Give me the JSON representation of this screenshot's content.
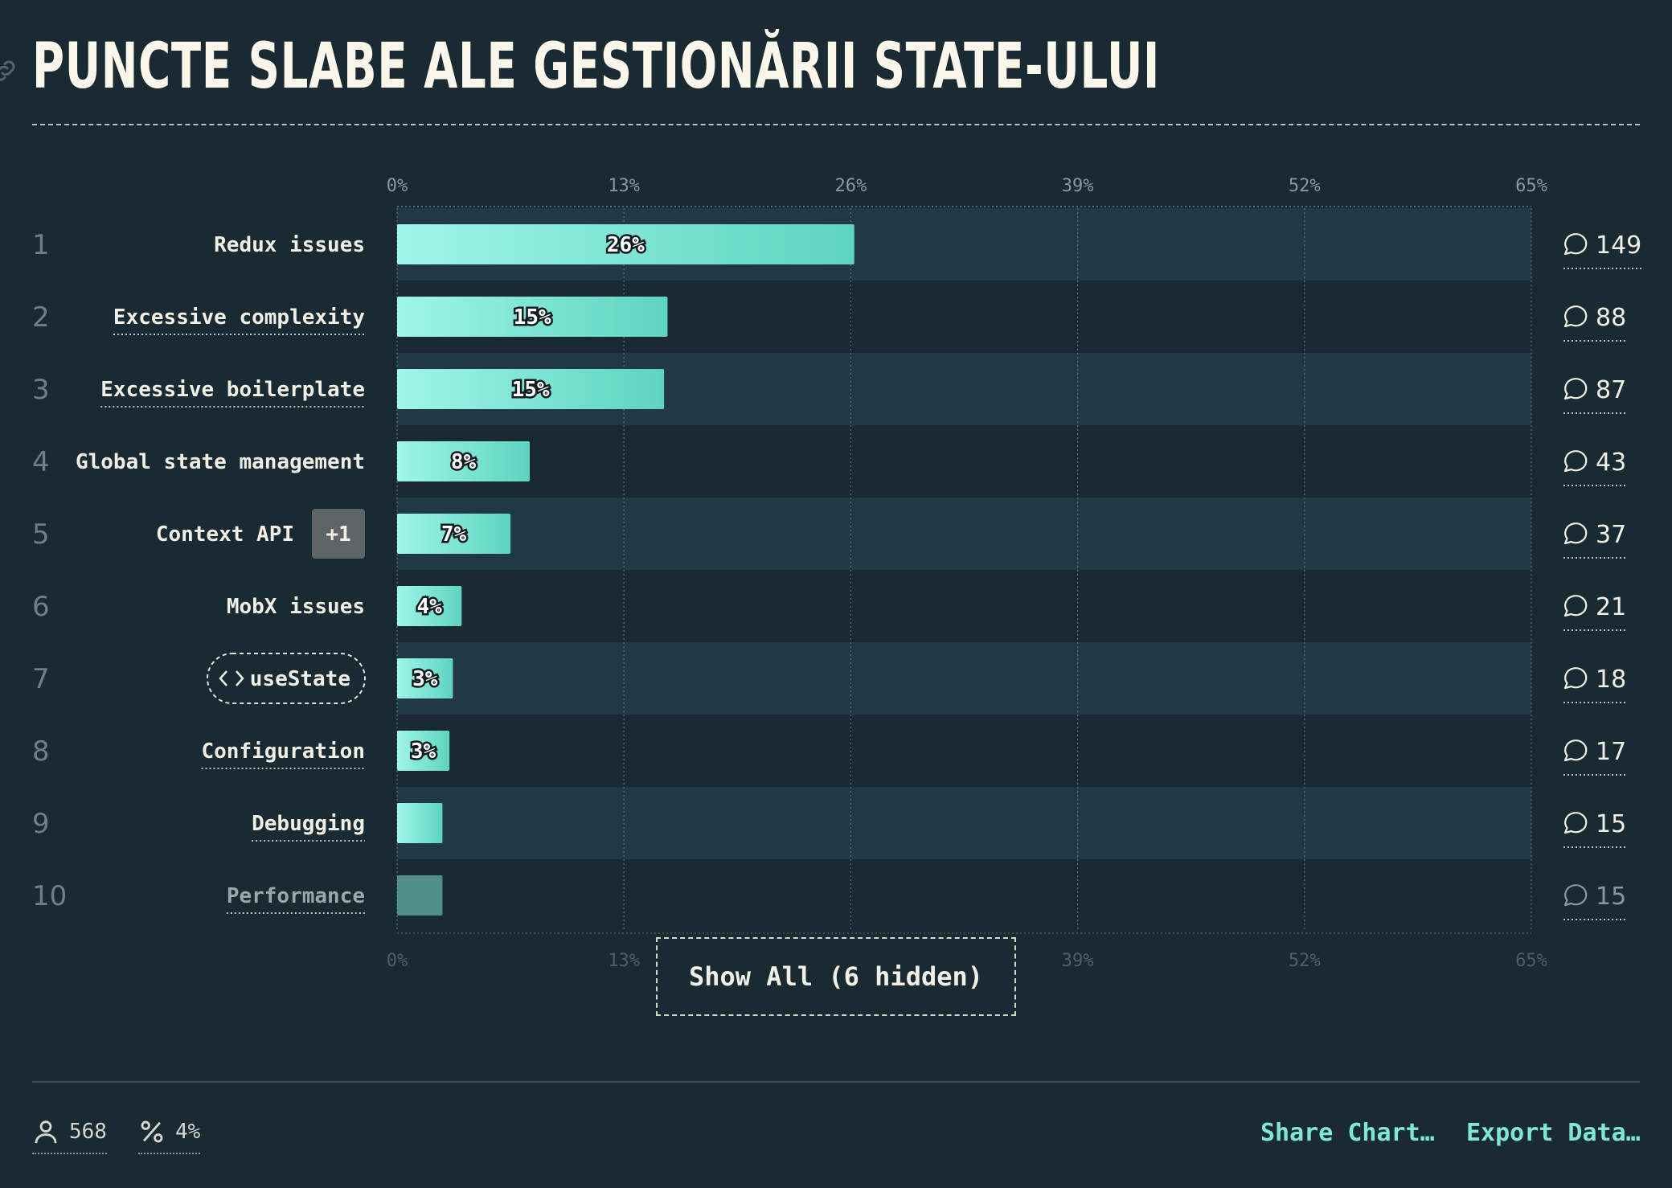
{
  "title": "PUNCTE SLABE ALE GESTIONĂRII STATE-ULUI",
  "chart_data": {
    "type": "bar",
    "orientation": "horizontal",
    "axis_ticks": [
      "0%",
      "13%",
      "26%",
      "39%",
      "52%",
      "65%"
    ],
    "xlim": [
      0,
      65
    ],
    "grid": true,
    "colors": {
      "bar_start": "#9ff6e9",
      "bar_end": "#5ed4c0",
      "bar_dim": "#4f8f89",
      "band": "#213947"
    },
    "categories": [
      {
        "rank": "1",
        "label": "Redux issues",
        "value": 26.2,
        "value_label": "26%",
        "count": "149",
        "underlined": false
      },
      {
        "rank": "2",
        "label": "Excessive complexity",
        "value": 15.5,
        "value_label": "15%",
        "count": "88",
        "underlined": true
      },
      {
        "rank": "3",
        "label": "Excessive boilerplate",
        "value": 15.3,
        "value_label": "15%",
        "count": "87",
        "underlined": true
      },
      {
        "rank": "4",
        "label": "Global state management",
        "value": 7.6,
        "value_label": "8%",
        "count": "43",
        "underlined": false
      },
      {
        "rank": "5",
        "label": "Context API",
        "badge": "+1",
        "value": 6.5,
        "value_label": "7%",
        "count": "37",
        "underlined": false
      },
      {
        "rank": "6",
        "label": "MobX issues",
        "value": 3.7,
        "value_label": "4%",
        "count": "21",
        "underlined": false
      },
      {
        "rank": "7",
        "label": "useState",
        "code_chip": true,
        "value": 3.2,
        "value_label": "3%",
        "count": "18",
        "underlined": false
      },
      {
        "rank": "8",
        "label": "Configuration",
        "value": 3.0,
        "value_label": "3%",
        "count": "17",
        "underlined": true
      },
      {
        "rank": "9",
        "label": "Debugging",
        "value": 2.6,
        "value_label": "",
        "count": "15",
        "underlined": true
      },
      {
        "rank": "10",
        "label": "Performance",
        "value": 2.6,
        "value_label": "",
        "count": "15",
        "underlined": true,
        "dimmed": true
      }
    ]
  },
  "show_all_label": "Show All (6 hidden)",
  "footer": {
    "respondents": "568",
    "percentage": "4%",
    "share_label": "Share Chart…",
    "export_label": "Export Data…"
  },
  "icons": {
    "link": "link-icon",
    "comment": "comment-icon",
    "person": "person-icon",
    "percent": "percent-icon",
    "code": "code-icon"
  }
}
